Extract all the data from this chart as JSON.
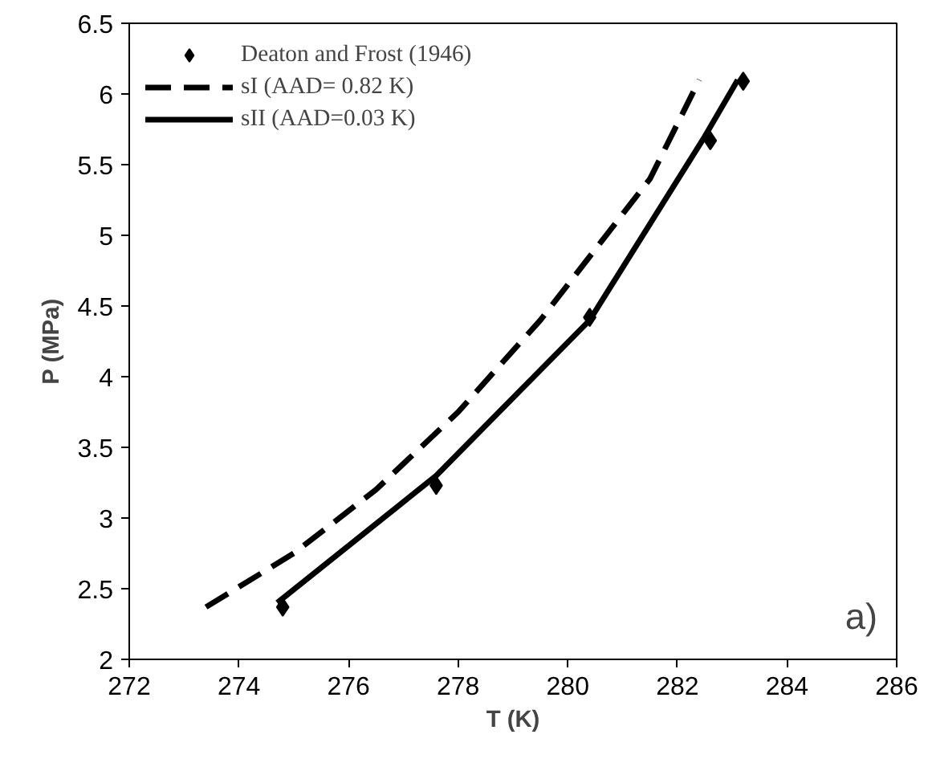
{
  "chart_data": {
    "type": "line",
    "xlabel": "T (K)",
    "ylabel": "P (MPa)",
    "xlim": [
      272,
      286
    ],
    "xticks": [
      272,
      274,
      276,
      278,
      280,
      282,
      284,
      286
    ],
    "ylim": [
      2,
      6.5
    ],
    "yticks": [
      2,
      2.5,
      3,
      3.5,
      4,
      4.5,
      5,
      5.5,
      6,
      6.5
    ],
    "grid": false,
    "legend": "top left",
    "annotations": [
      "a)"
    ],
    "series": [
      {
        "name": "Deaton and Frost (1946)",
        "type": "scatter",
        "marker": "diamond",
        "color": "#000000",
        "x": [
          274.8,
          277.6,
          280.4,
          282.6,
          283.2
        ],
        "values": [
          2.37,
          3.23,
          4.42,
          5.67,
          6.09
        ]
      },
      {
        "name": "sI (AAD= 0.82 K)",
        "line_style": "dashed",
        "color": "#000000",
        "x": [
          273.4,
          275.0,
          276.5,
          278.0,
          279.5,
          280.5,
          281.5,
          282.4
        ],
        "values": [
          2.37,
          2.75,
          3.2,
          3.75,
          4.4,
          4.9,
          5.4,
          6.1
        ]
      },
      {
        "name": "sII (AAD=0.03 K)",
        "line_style": "solid",
        "color": "#000000",
        "x": [
          274.7,
          277.6,
          280.4,
          282.5,
          283.1
        ],
        "values": [
          2.4,
          3.3,
          4.4,
          5.7,
          6.1
        ]
      }
    ]
  }
}
